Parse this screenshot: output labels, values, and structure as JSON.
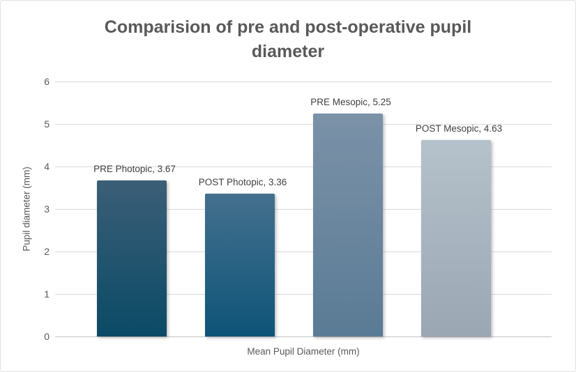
{
  "chart": {
    "title": "Comparision of pre and post-operative pupil diameter",
    "y_axis_title": "Pupil diameter (mm)",
    "x_axis_title": "Mean Pupil Diameter (mm)"
  },
  "chart_data": {
    "type": "bar",
    "title": "Comparision of pre and post-operative pupil diameter",
    "xlabel": "Mean Pupil Diameter (mm)",
    "ylabel": "Pupil diameter (mm)",
    "ylim": [
      0,
      6
    ],
    "y_ticks": [
      0,
      1,
      2,
      3,
      4,
      5,
      6
    ],
    "grid": true,
    "legend": "none",
    "categories": [
      "Mean Pupil Diameter (mm)"
    ],
    "series": [
      {
        "name": "PRE Photopic",
        "value": 3.67,
        "data_label": "PRE Photopic, 3.67",
        "color_top": "#3c5e77",
        "color_bottom": "#0a4a66"
      },
      {
        "name": "POST Photopic",
        "value": 3.36,
        "data_label": "POST Photopic, 3.36",
        "color_top": "#44708e",
        "color_bottom": "#0e5478"
      },
      {
        "name": "PRE Mesopic",
        "value": 5.25,
        "data_label": "PRE Mesopic, 5.25",
        "color_top": "#7b92a8",
        "color_bottom": "#5a7b95"
      },
      {
        "name": "POST Mesopic",
        "value": 4.63,
        "data_label": "POST Mesopic, 4.63",
        "color_top": "#b5c1cb",
        "color_bottom": "#9aa7b2"
      }
    ],
    "colors": {
      "title_text": "#595959",
      "axis_text": "#595959",
      "data_label_text": "#404040",
      "gridline": "#d9d9d9",
      "axis_line": "#c3c3c3",
      "background": "#ffffff"
    }
  }
}
